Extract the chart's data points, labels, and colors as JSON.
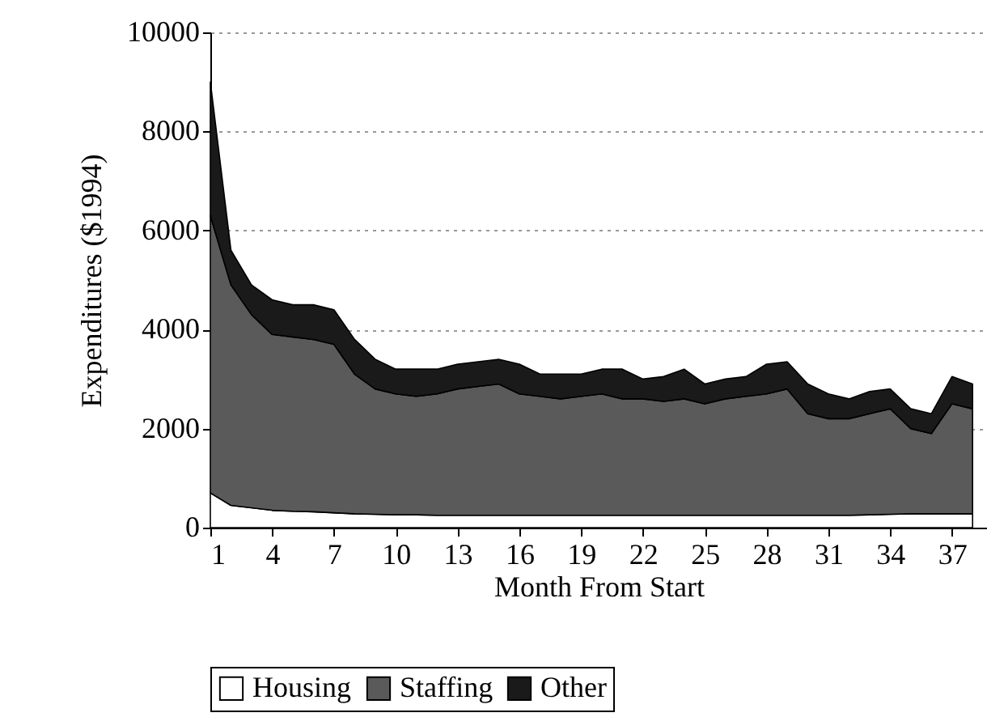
{
  "chart_data": {
    "type": "area",
    "stacked": true,
    "xlabel": "Month From Start",
    "ylabel": "Expenditures ($1994)",
    "x": [
      1,
      2,
      3,
      4,
      5,
      6,
      7,
      8,
      9,
      10,
      11,
      12,
      13,
      14,
      15,
      16,
      17,
      18,
      19,
      20,
      21,
      22,
      23,
      24,
      25,
      26,
      27,
      28,
      29,
      30,
      31,
      32,
      33,
      34,
      35,
      36,
      37,
      38
    ],
    "series": [
      {
        "name": "Housing",
        "color": "#ffffff",
        "values": [
          700,
          450,
          400,
          350,
          330,
          320,
          300,
          280,
          270,
          260,
          260,
          250,
          250,
          250,
          250,
          250,
          250,
          250,
          250,
          250,
          250,
          250,
          250,
          250,
          250,
          250,
          250,
          250,
          250,
          250,
          250,
          250,
          260,
          270,
          280,
          280,
          280,
          280
        ]
      },
      {
        "name": "Staffing",
        "color": "#5a5a5a",
        "values": [
          5600,
          4450,
          3900,
          3550,
          3520,
          3480,
          3400,
          2820,
          2530,
          2440,
          2390,
          2450,
          2550,
          2600,
          2650,
          2450,
          2400,
          2350,
          2400,
          2450,
          2350,
          2350,
          2300,
          2350,
          2250,
          2350,
          2400,
          2450,
          2550,
          2050,
          1950,
          1950,
          2040,
          2130,
          1720,
          1620,
          2220,
          2120
        ]
      },
      {
        "name": "Other",
        "color": "#1a1a1a",
        "values": [
          2700,
          700,
          600,
          700,
          650,
          700,
          700,
          700,
          600,
          500,
          550,
          500,
          500,
          500,
          500,
          600,
          450,
          500,
          450,
          500,
          600,
          400,
          500,
          600,
          400,
          400,
          400,
          600,
          550,
          600,
          500,
          400,
          450,
          400,
          400,
          400,
          550,
          500
        ]
      }
    ],
    "xlim": [
      1,
      38.7
    ],
    "xticks": [
      1,
      4,
      7,
      10,
      13,
      16,
      19,
      22,
      25,
      28,
      31,
      34,
      37
    ],
    "ylim": [
      0,
      10000
    ],
    "yticks": [
      0,
      2000,
      4000,
      6000,
      8000,
      10000
    ],
    "grid": "y",
    "legend": "bottom"
  }
}
